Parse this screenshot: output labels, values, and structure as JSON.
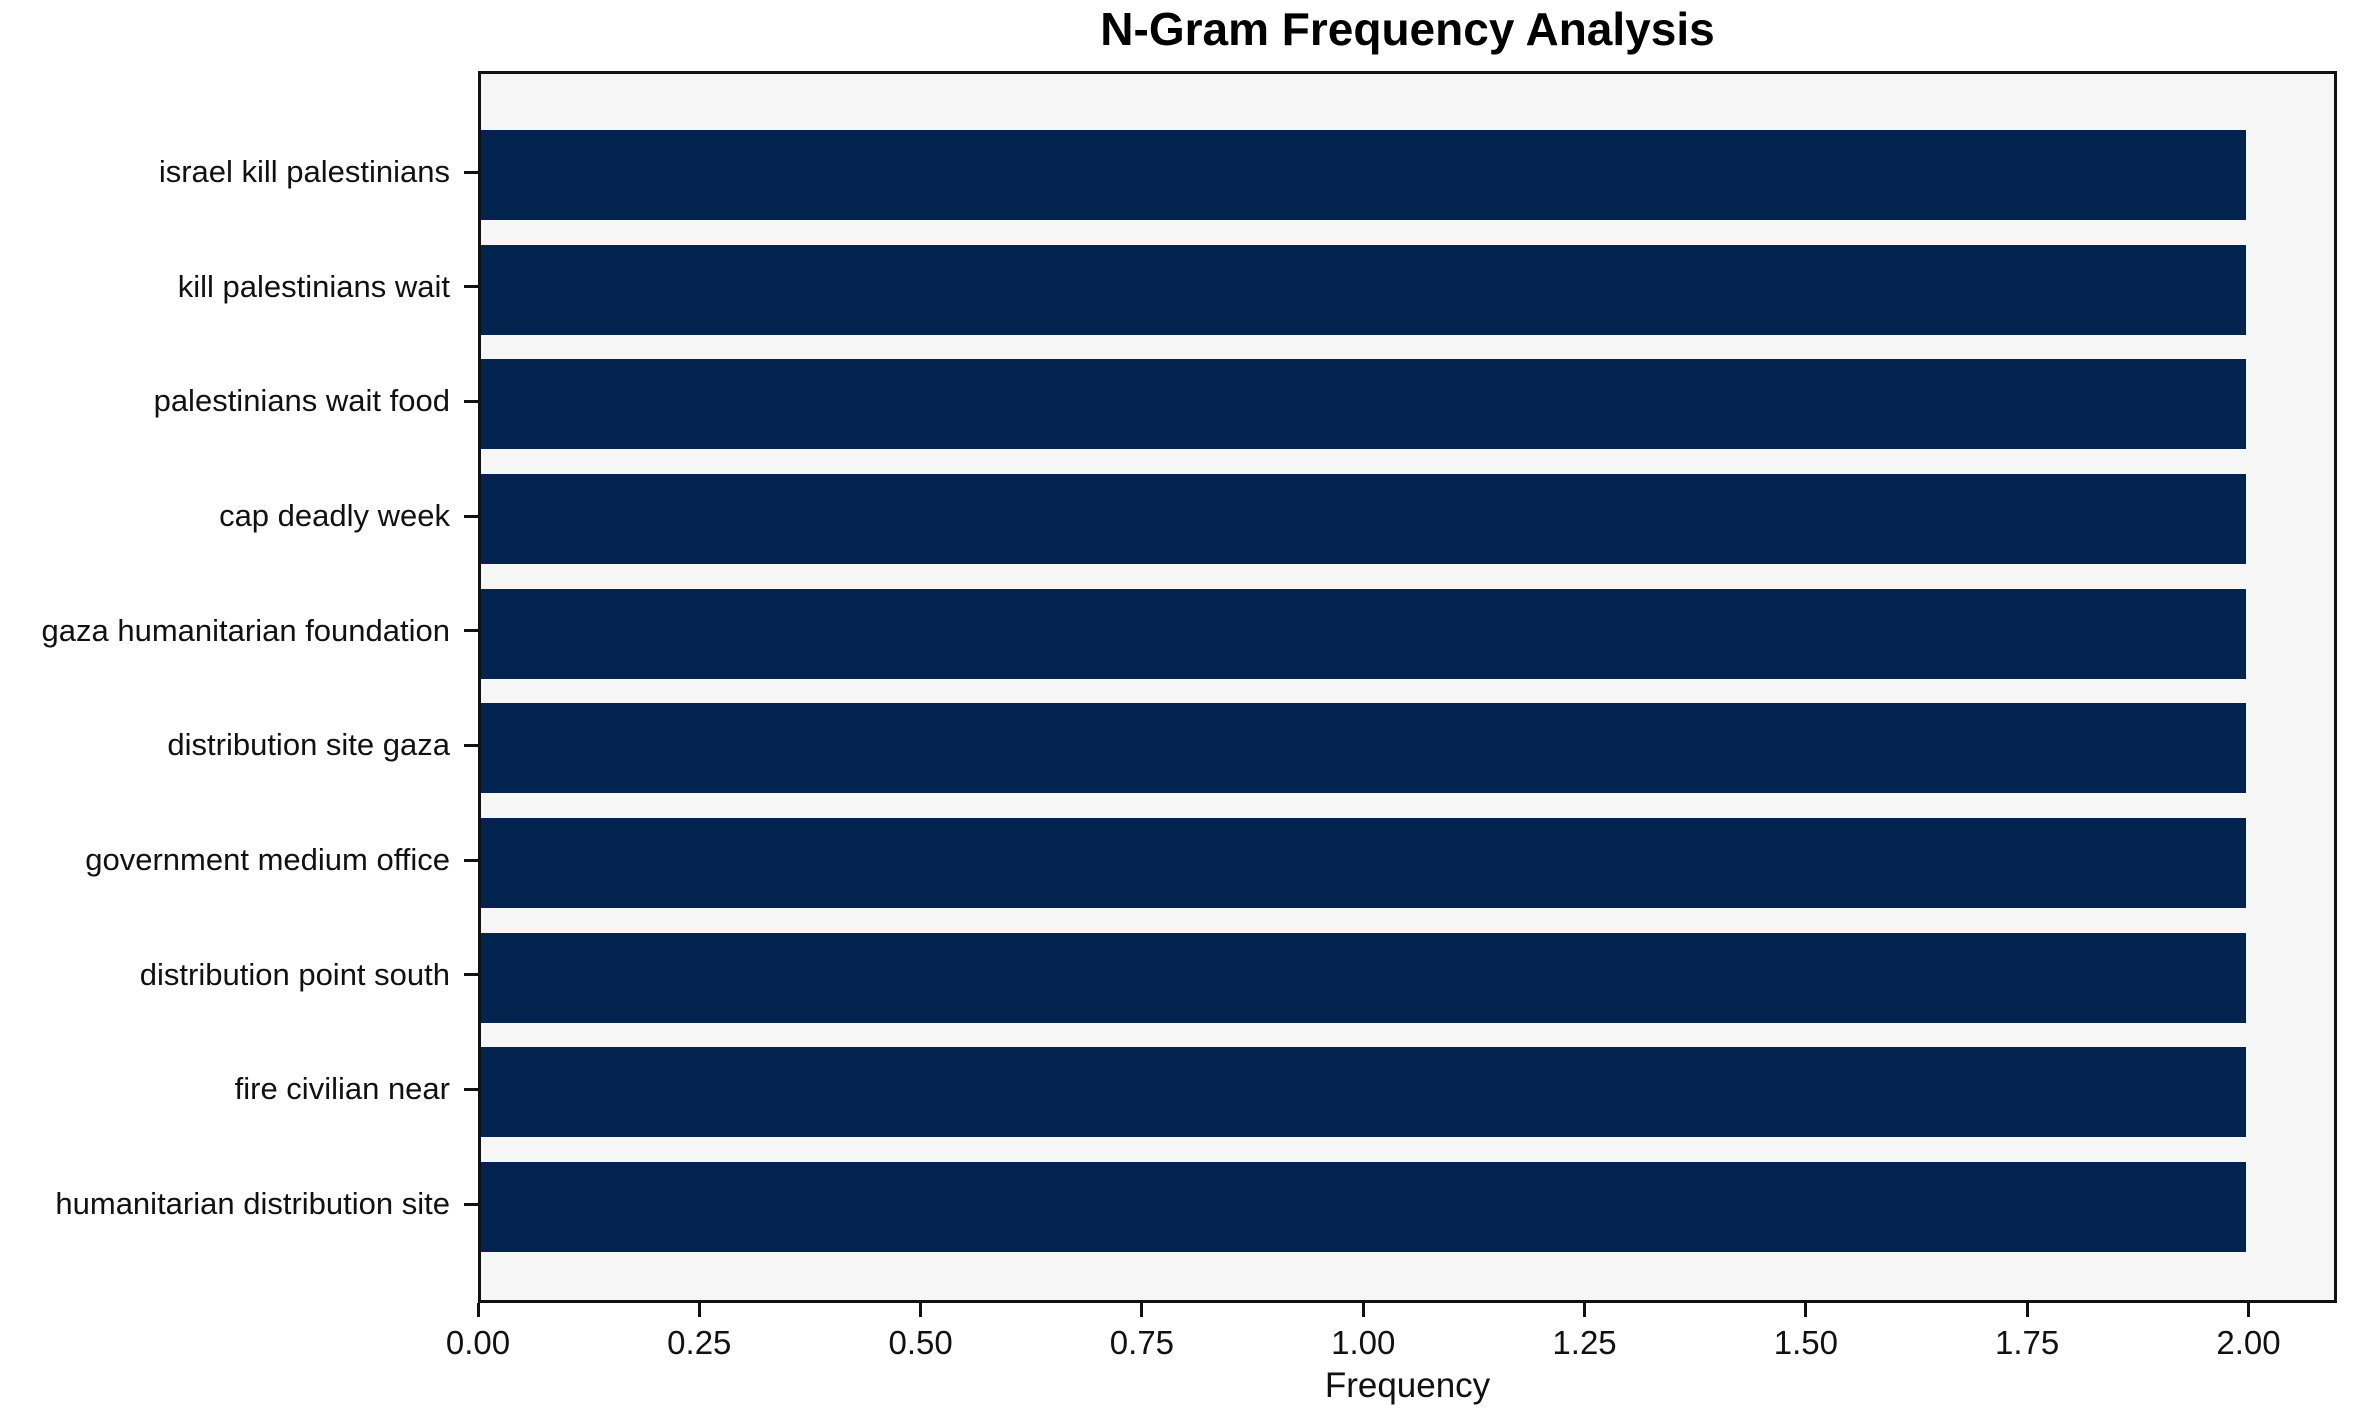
{
  "chart_data": {
    "type": "bar",
    "orientation": "horizontal",
    "title": "N-Gram Frequency Analysis",
    "xlabel": "Frequency",
    "ylabel": "",
    "categories": [
      "israel kill palestinians",
      "kill palestinians wait",
      "palestinians wait food",
      "cap deadly week",
      "gaza humanitarian foundation",
      "distribution site gaza",
      "government medium office",
      "distribution point south",
      "fire civilian near",
      "humanitarian distribution site"
    ],
    "values": [
      2,
      2,
      2,
      2,
      2,
      2,
      2,
      2,
      2,
      2
    ],
    "xlim": [
      0,
      2.1
    ],
    "xtick_values": [
      0,
      0.25,
      0.5,
      0.75,
      1.0,
      1.25,
      1.5,
      1.75,
      2.0
    ],
    "xtick_labels": [
      "0.00",
      "0.25",
      "0.50",
      "0.75",
      "1.00",
      "1.25",
      "1.50",
      "1.75",
      "2.00"
    ],
    "grid": false,
    "colors": {
      "bar": "#02234d",
      "plot_background": "#f6f6f7",
      "axis": "#111111",
      "figure_background": "#ffffff"
    }
  }
}
